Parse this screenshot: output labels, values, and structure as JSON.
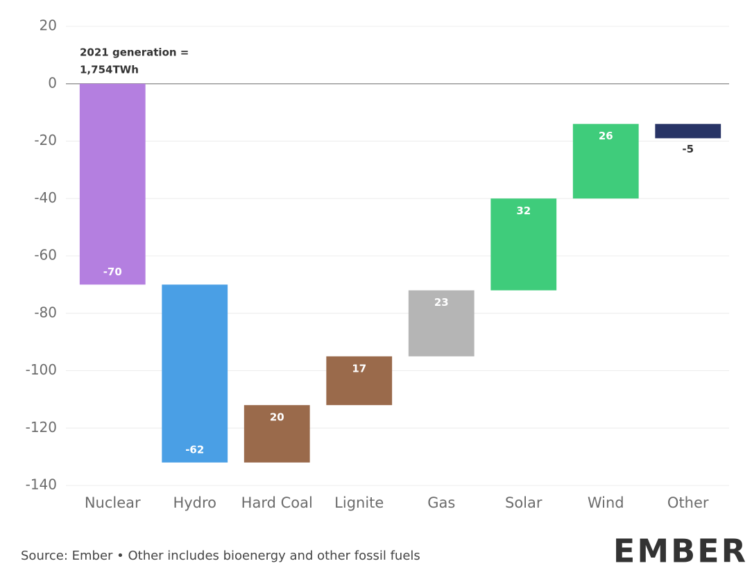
{
  "chart_data": {
    "type": "waterfall",
    "annotation": [
      "2021 generation =",
      "1,754TWh"
    ],
    "categories": [
      "Nuclear",
      "Hydro",
      "Hard Coal",
      "Lignite",
      "Gas",
      "Solar",
      "Wind",
      "Other"
    ],
    "values": [
      -70,
      -62,
      20,
      17,
      23,
      32,
      26,
      -5
    ],
    "colors": [
      "#b47fe0",
      "#4a9fe5",
      "#9a6a4b",
      "#9a6a4b",
      "#b5b5b5",
      "#3fcc7b",
      "#3fcc7b",
      "#283466"
    ],
    "ylim": [
      -140,
      20
    ],
    "yticks": [
      -140,
      -120,
      -100,
      -80,
      -60,
      -40,
      -20,
      0,
      20
    ],
    "grid": true,
    "source": "Source: Ember • Other includes bioenergy and other fossil fuels",
    "logo": "EMBER"
  }
}
